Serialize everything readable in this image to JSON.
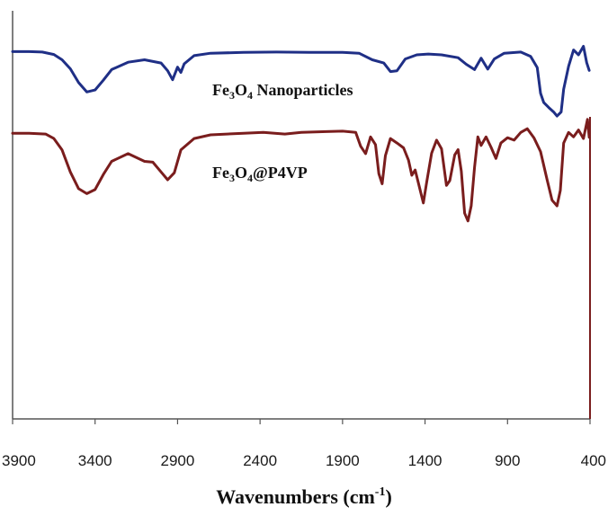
{
  "chart_data": {
    "type": "line",
    "title": "",
    "xlabel": "Wavenumbers (cm-1)",
    "xlabel_parts": {
      "main": "Wavenumbers (cm",
      "sup": "-1",
      "close": ")"
    },
    "ylabel": "",
    "xlim": [
      3900,
      400
    ],
    "x_reversed": true,
    "grid": false,
    "x_ticks": [
      3900,
      3400,
      2900,
      2400,
      1900,
      1400,
      900,
      400
    ],
    "x_tick_labels": [
      "3900",
      "3400",
      "2900",
      "2400",
      "1900",
      "1400",
      "900",
      "400"
    ],
    "y_unit": "relative transmittance (0 = bottom axis, 100 = top)",
    "ylim": [
      0,
      100
    ],
    "series": [
      {
        "label_parts": [
          {
            "t": "Fe",
            "sub": false
          },
          {
            "t": "3",
            "sub": true
          },
          {
            "t": "O",
            "sub": false
          },
          {
            "t": "4",
            "sub": true
          },
          {
            "t": " Nanoparticles",
            "sub": false
          }
        ],
        "color": "#1f2f86",
        "points": [
          [
            3900,
            90.0
          ],
          [
            3800,
            90.0
          ],
          [
            3720,
            89.9
          ],
          [
            3650,
            89.3
          ],
          [
            3600,
            88.0
          ],
          [
            3550,
            85.8
          ],
          [
            3500,
            82.4
          ],
          [
            3450,
            80.1
          ],
          [
            3400,
            80.6
          ],
          [
            3350,
            83.0
          ],
          [
            3300,
            85.6
          ],
          [
            3200,
            87.4
          ],
          [
            3100,
            88.0
          ],
          [
            3000,
            87.2
          ],
          [
            2960,
            85.3
          ],
          [
            2930,
            83.1
          ],
          [
            2900,
            86.2
          ],
          [
            2880,
            84.9
          ],
          [
            2860,
            87.0
          ],
          [
            2800,
            89.0
          ],
          [
            2700,
            89.6
          ],
          [
            2500,
            89.8
          ],
          [
            2300,
            89.9
          ],
          [
            2100,
            89.8
          ],
          [
            1900,
            89.8
          ],
          [
            1800,
            89.6
          ],
          [
            1720,
            88.0
          ],
          [
            1650,
            87.2
          ],
          [
            1610,
            85.1
          ],
          [
            1570,
            85.3
          ],
          [
            1520,
            88.2
          ],
          [
            1450,
            89.2
          ],
          [
            1380,
            89.4
          ],
          [
            1300,
            89.2
          ],
          [
            1200,
            88.5
          ],
          [
            1150,
            86.9
          ],
          [
            1100,
            85.6
          ],
          [
            1060,
            88.4
          ],
          [
            1020,
            85.7
          ],
          [
            980,
            88.2
          ],
          [
            920,
            89.6
          ],
          [
            820,
            89.9
          ],
          [
            760,
            88.8
          ],
          [
            720,
            86.1
          ],
          [
            700,
            79.8
          ],
          [
            680,
            77.5
          ],
          [
            650,
            76.3
          ],
          [
            620,
            75.2
          ],
          [
            600,
            74.2
          ],
          [
            575,
            75.2
          ],
          [
            560,
            80.8
          ],
          [
            530,
            86.4
          ],
          [
            500,
            90.4
          ],
          [
            470,
            89.2
          ],
          [
            440,
            91.3
          ],
          [
            420,
            87.3
          ],
          [
            405,
            85.4
          ]
        ]
      },
      {
        "label_parts": [
          {
            "t": "Fe",
            "sub": false
          },
          {
            "t": "3",
            "sub": true
          },
          {
            "t": "O",
            "sub": false
          },
          {
            "t": "4",
            "sub": true
          },
          {
            "t": "@P4VP",
            "sub": false
          }
        ],
        "color": "#7a1d1d",
        "points": [
          [
            3900,
            70.0
          ],
          [
            3800,
            70.0
          ],
          [
            3700,
            69.8
          ],
          [
            3650,
            68.7
          ],
          [
            3600,
            65.9
          ],
          [
            3550,
            60.5
          ],
          [
            3500,
            56.4
          ],
          [
            3450,
            55.2
          ],
          [
            3400,
            56.2
          ],
          [
            3350,
            59.9
          ],
          [
            3300,
            63.1
          ],
          [
            3200,
            65.0
          ],
          [
            3100,
            63.1
          ],
          [
            3050,
            62.9
          ],
          [
            3000,
            60.5
          ],
          [
            2960,
            58.6
          ],
          [
            2920,
            60.3
          ],
          [
            2880,
            65.9
          ],
          [
            2800,
            68.7
          ],
          [
            2700,
            69.6
          ],
          [
            2500,
            70.0
          ],
          [
            2380,
            70.2
          ],
          [
            2250,
            69.8
          ],
          [
            2150,
            70.2
          ],
          [
            2000,
            70.4
          ],
          [
            1900,
            70.5
          ],
          [
            1820,
            70.2
          ],
          [
            1790,
            66.8
          ],
          [
            1760,
            65.0
          ],
          [
            1730,
            69.1
          ],
          [
            1700,
            67.2
          ],
          [
            1680,
            60.1
          ],
          [
            1660,
            57.6
          ],
          [
            1640,
            64.5
          ],
          [
            1610,
            68.7
          ],
          [
            1570,
            67.6
          ],
          [
            1530,
            66.4
          ],
          [
            1500,
            63.4
          ],
          [
            1480,
            59.7
          ],
          [
            1460,
            61.0
          ],
          [
            1440,
            57.8
          ],
          [
            1410,
            52.9
          ],
          [
            1390,
            58.0
          ],
          [
            1360,
            65.1
          ],
          [
            1330,
            68.3
          ],
          [
            1300,
            66.2
          ],
          [
            1270,
            57.2
          ],
          [
            1250,
            58.4
          ],
          [
            1220,
            64.7
          ],
          [
            1200,
            66.0
          ],
          [
            1180,
            60.7
          ],
          [
            1160,
            50.4
          ],
          [
            1140,
            48.5
          ],
          [
            1120,
            52.2
          ],
          [
            1100,
            61.6
          ],
          [
            1080,
            69.1
          ],
          [
            1060,
            67.0
          ],
          [
            1030,
            69.1
          ],
          [
            1000,
            66.6
          ],
          [
            970,
            63.8
          ],
          [
            940,
            67.6
          ],
          [
            900,
            68.9
          ],
          [
            860,
            68.3
          ],
          [
            820,
            70.2
          ],
          [
            780,
            71.1
          ],
          [
            740,
            68.9
          ],
          [
            700,
            65.5
          ],
          [
            660,
            58.6
          ],
          [
            630,
            53.6
          ],
          [
            600,
            52.2
          ],
          [
            580,
            56.0
          ],
          [
            560,
            67.6
          ],
          [
            530,
            70.2
          ],
          [
            500,
            69.1
          ],
          [
            470,
            70.8
          ],
          [
            440,
            68.7
          ],
          [
            415,
            73.4
          ],
          [
            405,
            69.0
          ]
        ]
      }
    ]
  }
}
